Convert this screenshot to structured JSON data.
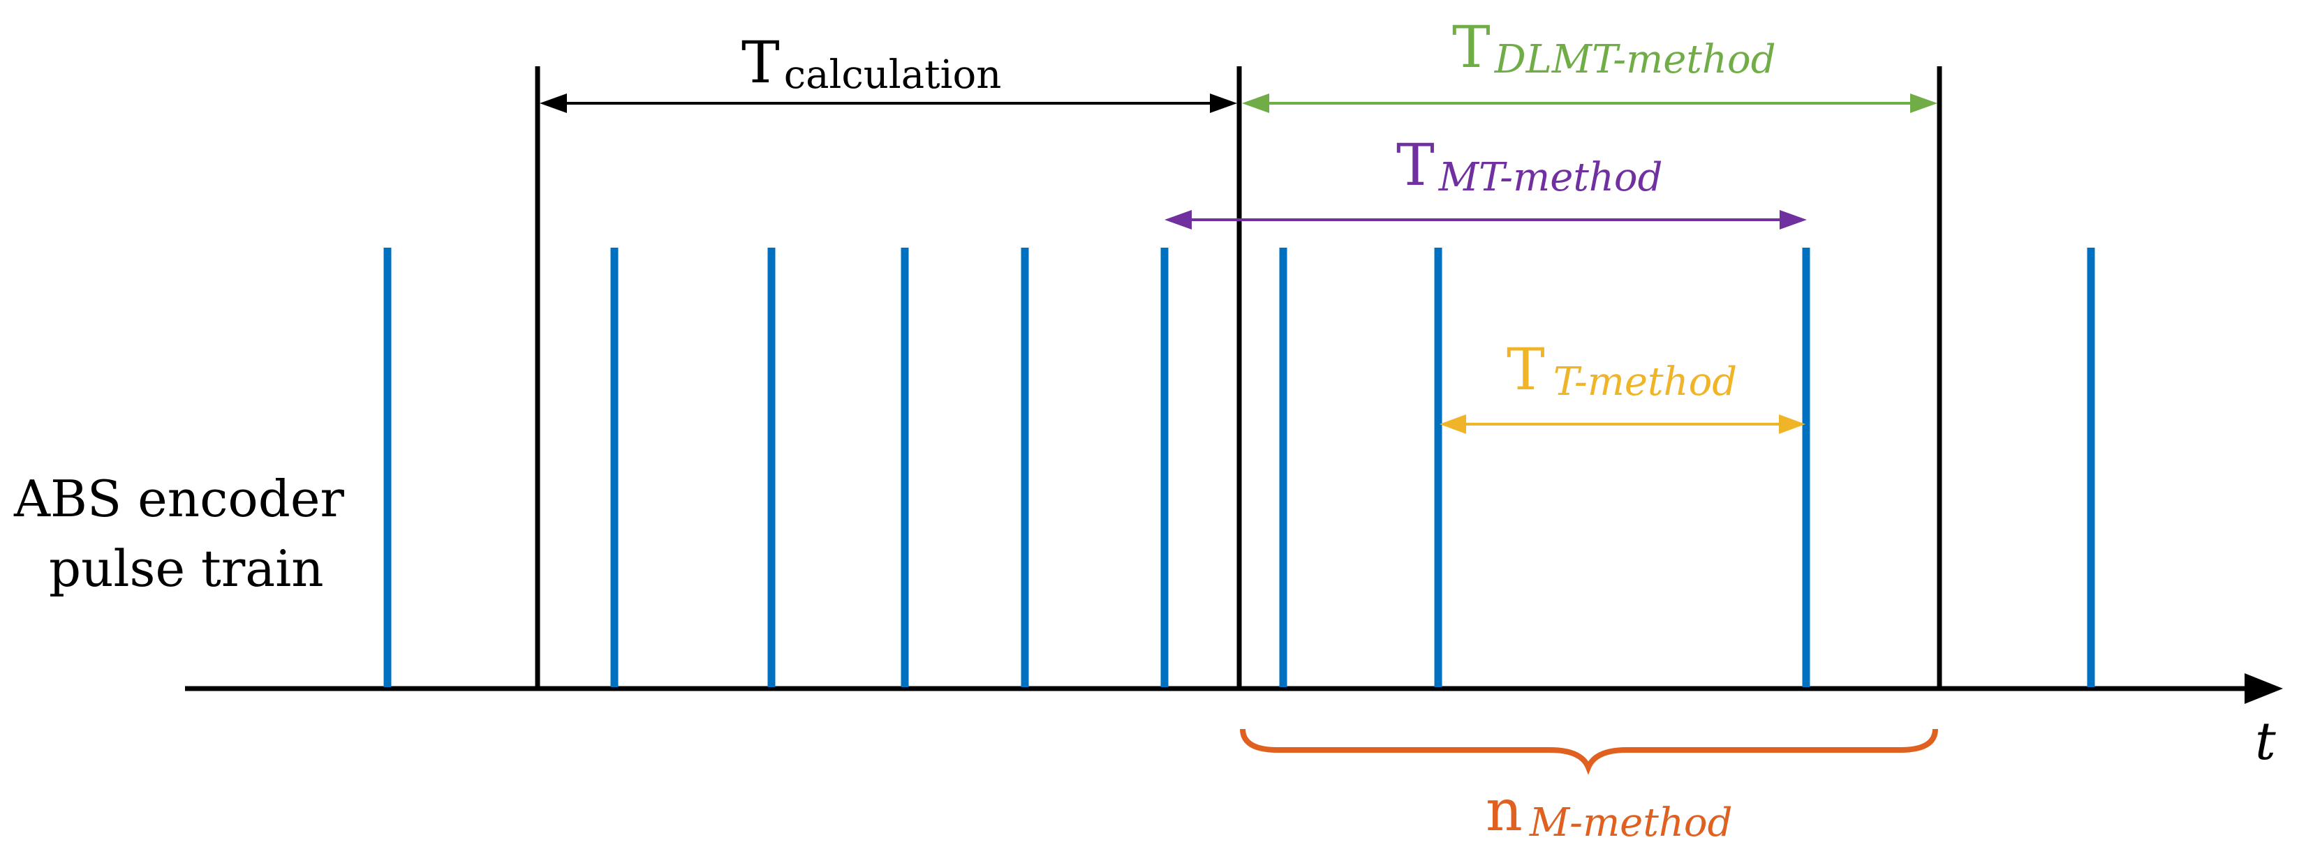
{
  "colors": {
    "axis": "#000000",
    "pulse": "#0070C0",
    "calculation": "#000000",
    "dlmt": "#70AD47",
    "mt": "#7030A0",
    "t_method": "#F0B429",
    "m_method": "#E06020"
  },
  "labels": {
    "axis_t": "t",
    "left_line1": "ABS encoder",
    "left_line2": "pulse train",
    "calc_main": "T",
    "calc_sub": "calculation",
    "dlmt_main": "T",
    "dlmt_sub": "DLMT-method",
    "mt_main": "T",
    "mt_sub": "MT-method",
    "t_main": "T",
    "t_sub": "T-method",
    "n_main": "n",
    "n_sub": "M-method"
  }
}
